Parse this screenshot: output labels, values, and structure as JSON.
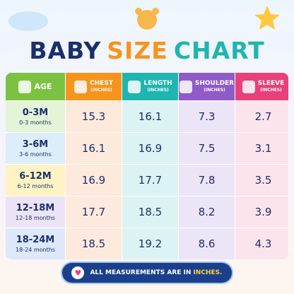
{
  "title": {
    "words": [
      "BABY",
      "SIZE",
      "CHART"
    ]
  },
  "table": {
    "headers": [
      {
        "name": "AGE"
      },
      {
        "name": "CHEST",
        "unit": "(INCHES)"
      },
      {
        "name": "LENGTH",
        "unit": "(INCHES)"
      },
      {
        "name": "SHOULDER",
        "unit": "(INCHES)"
      },
      {
        "name": "SLEEVE",
        "unit": "(INCHES)"
      }
    ],
    "rows": [
      {
        "age": "0-3M",
        "range": "0-3 months",
        "values": [
          15.3,
          16.1,
          7.3,
          2.7
        ]
      },
      {
        "age": "3-6M",
        "range": "3-6 months",
        "values": [
          16.1,
          16.9,
          7.5,
          3.1
        ]
      },
      {
        "age": "6-12M",
        "range": "6-12 months",
        "values": [
          16.9,
          17.7,
          7.8,
          3.5
        ]
      },
      {
        "age": "12-18M",
        "range": "12-18 months",
        "values": [
          17.7,
          18.5,
          8.2,
          3.9
        ]
      },
      {
        "age": "18-24M",
        "range": "18-24 months",
        "values": [
          18.5,
          19.2,
          8.6,
          4.3
        ]
      }
    ]
  },
  "footer": {
    "text": "ALL MEASUREMENTS ARE IN",
    "highlight": "INCHES."
  }
}
